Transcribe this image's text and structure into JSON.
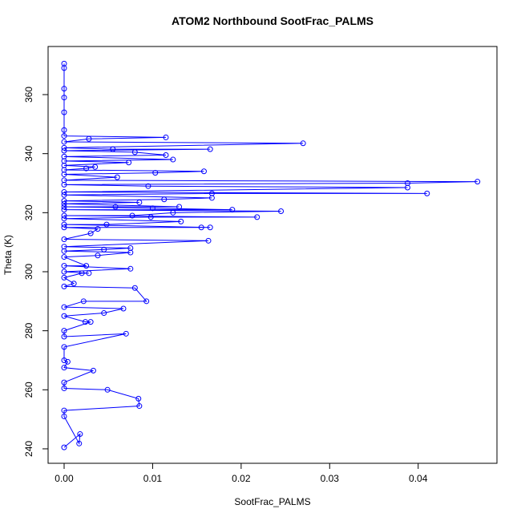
{
  "chart_data": {
    "type": "line",
    "title": "ATOM2 Northbound SootFrac_PALMS",
    "x_label": "SootFrac_PALMS",
    "y_label": "Theta (K)",
    "color": "#0000ff",
    "markers": true,
    "x": [
      0.0,
      0.0018,
      0.0017,
      0.0,
      0.0,
      0.0085,
      0.0084,
      0.0049,
      0.0,
      0.0,
      0.0033,
      0.0,
      0.0004,
      0.0,
      0.0,
      0.007,
      0.0,
      0.0,
      0.003,
      0.0024,
      0.0,
      0.0045,
      0.0067,
      0.0,
      0.0022,
      0.0093,
      0.008,
      0.0,
      0.0011,
      0.0,
      0.002,
      0.0028,
      0.0,
      0.0075,
      0.0,
      0.0025,
      0.0,
      0.0038,
      0.0075,
      0.0,
      0.0045,
      0.0075,
      0.0,
      0.0163,
      0.0,
      0.003,
      0.0038,
      0.0,
      0.0155,
      0.0165,
      0.0,
      0.0048,
      0.0132,
      0.0,
      0.0098,
      0.0218,
      0.0,
      0.0077,
      0.0123,
      0.0245,
      0.0,
      0.019,
      0.01,
      0.0,
      0.0058,
      0.013,
      0.0,
      0.0085,
      0.0,
      0.0113,
      0.0167,
      0.0,
      0.0167,
      0.041,
      0.0,
      0.0388,
      0.0095,
      0.0,
      0.0388,
      0.0467,
      0.0,
      0.006,
      0.0,
      0.0103,
      0.0158,
      0.0,
      0.0025,
      0.0035,
      0.0,
      0.0073,
      0.0,
      0.0123,
      0.0,
      0.0115,
      0.008,
      0.0,
      0.0165,
      0.0055,
      0.0,
      0.027,
      0.0,
      0.0028,
      0.0115,
      0.0,
      0.0,
      0.0,
      0.0,
      0.0,
      0.0,
      0.0
    ],
    "values": [
      240.5,
      245,
      241.8,
      251,
      253,
      254.5,
      257,
      260,
      260.5,
      262.5,
      266.5,
      267.5,
      269.5,
      270,
      274.5,
      279,
      278,
      280,
      283,
      283,
      285,
      286,
      287.5,
      288,
      290,
      290,
      294.5,
      295,
      296,
      298,
      299.5,
      299.5,
      300,
      301,
      302,
      302,
      305,
      305.5,
      306.5,
      307,
      307.5,
      308,
      308.5,
      310.5,
      311,
      313,
      314.5,
      315,
      315,
      315,
      316,
      316,
      317,
      318,
      318.5,
      318.5,
      319,
      319,
      320,
      320.5,
      321,
      321,
      321.5,
      322,
      322,
      322,
      323,
      323.5,
      324,
      324.5,
      325,
      326,
      326.5,
      326.5,
      327,
      328.5,
      329,
      329.5,
      330,
      330.5,
      331,
      332,
      333,
      333.5,
      334,
      334.5,
      335,
      335.5,
      336,
      337,
      337.5,
      338,
      339,
      339.5,
      340.5,
      341,
      341.5,
      341.5,
      342,
      343.5,
      344,
      345,
      345.5,
      346,
      348,
      354,
      359,
      362,
      369,
      370.5
    ],
    "xlim": [
      -0.00181,
      0.0489
    ],
    "ylim": [
      235.1,
      376.3
    ],
    "xticks": [
      {
        "value": 0,
        "label": "0.00"
      },
      0.01,
      0.02,
      0.03,
      0.04
    ],
    "yticks": [
      240,
      260,
      280,
      300,
      320,
      340,
      360
    ]
  }
}
